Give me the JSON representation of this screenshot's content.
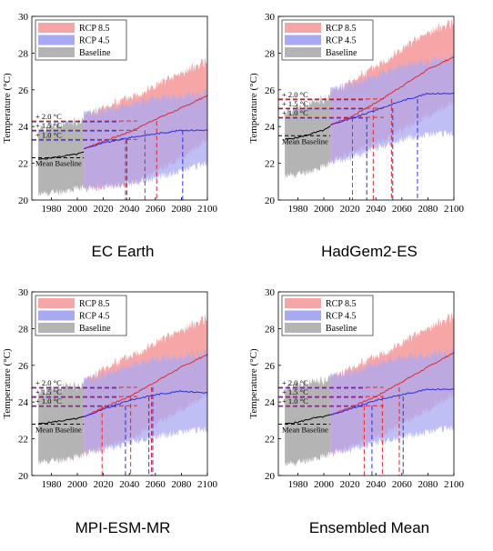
{
  "colors": {
    "rcp85_band": "#f7a6a8",
    "rcp45_band": "#a9a9f3",
    "baseline_band": "#b4b4b4",
    "overlap_band": "#a779c6",
    "rcp85_line": "#e8242b",
    "rcp45_line": "#2b2fe0",
    "baseline_line": "#000000"
  },
  "legend": [
    "RCP 8.5",
    "RCP 4.5",
    "Baseline"
  ],
  "threshold_labels": [
    "+ 2.0 °C",
    "+ 1.5 °C",
    "+ 1.0 °C"
  ],
  "mean_label": "Mean Baseline",
  "ylabel": "Temperature (°C)",
  "chart_data": [
    {
      "type": "area",
      "title": "EC Earth",
      "ylabel": "Temperature (°C)",
      "xlim": [
        1965,
        2100
      ],
      "ylim": [
        20,
        30
      ],
      "xticks": [
        1980,
        2000,
        2020,
        2040,
        2060,
        2080,
        2100
      ],
      "yticks": [
        20,
        22,
        24,
        26,
        28,
        30
      ],
      "baseline_period": [
        1970,
        2005
      ],
      "mean_baseline": 22.3,
      "baseline": {
        "x": [
          1970,
          1980,
          1990,
          2000,
          2005
        ],
        "mean": [
          22.2,
          22.3,
          22.4,
          22.5,
          22.6
        ],
        "low": [
          20.3,
          20.4,
          20.5,
          20.6,
          20.7
        ],
        "high": [
          23.9,
          24.0,
          24.1,
          24.3,
          24.4
        ]
      },
      "series": [
        {
          "name": "RCP 8.5",
          "x": [
            2005,
            2020,
            2040,
            2060,
            2080,
            2100
          ],
          "mean": [
            22.8,
            23.2,
            23.7,
            24.4,
            25.0,
            25.7
          ],
          "low": [
            20.6,
            20.7,
            20.9,
            21.5,
            22.3,
            23.3
          ],
          "high": [
            24.6,
            25.0,
            25.6,
            26.2,
            26.9,
            27.6
          ]
        },
        {
          "name": "RCP 4.5",
          "x": [
            2005,
            2020,
            2040,
            2060,
            2080,
            2100
          ],
          "mean": [
            22.8,
            23.1,
            23.4,
            23.6,
            23.8,
            23.8
          ],
          "low": [
            20.6,
            20.7,
            20.9,
            21.2,
            21.6,
            22.0
          ],
          "high": [
            24.6,
            24.9,
            25.2,
            25.5,
            25.7,
            25.8
          ]
        }
      ],
      "thresholds": [
        24.3,
        23.8,
        23.3
      ],
      "crossings": {
        "RCP 8.5": [
          2037,
          2052,
          2061
        ],
        "RCP 4.5": [
          2038,
          2081
        ]
      }
    },
    {
      "type": "area",
      "title": "HadGem2-ES",
      "ylabel": "Temperature (°C)",
      "xlim": [
        1965,
        2100
      ],
      "ylim": [
        20,
        30
      ],
      "xticks": [
        1980,
        2000,
        2020,
        2040,
        2060,
        2080,
        2100
      ],
      "yticks": [
        20,
        22,
        24,
        26,
        28,
        30
      ],
      "baseline_period": [
        1970,
        2005
      ],
      "mean_baseline": 23.5,
      "baseline": {
        "x": [
          1970,
          1980,
          1990,
          2000,
          2005
        ],
        "mean": [
          23.3,
          23.4,
          23.6,
          23.8,
          24.0
        ],
        "low": [
          21.3,
          21.4,
          21.6,
          21.8,
          22.0
        ],
        "high": [
          24.8,
          25.0,
          25.2,
          25.5,
          25.7
        ]
      },
      "series": [
        {
          "name": "RCP 8.5",
          "x": [
            2005,
            2020,
            2040,
            2060,
            2080,
            2100
          ],
          "mean": [
            24.1,
            24.5,
            25.3,
            26.2,
            27.1,
            27.8
          ],
          "low": [
            22.1,
            22.5,
            23.1,
            23.8,
            24.6,
            25.3
          ],
          "high": [
            25.8,
            26.4,
            27.3,
            28.2,
            29.1,
            29.7
          ]
        },
        {
          "name": "RCP 4.5",
          "x": [
            2005,
            2020,
            2040,
            2060,
            2080,
            2100
          ],
          "mean": [
            24.1,
            24.4,
            24.9,
            25.4,
            25.8,
            25.8
          ],
          "low": [
            22.0,
            22.3,
            22.8,
            23.3,
            23.6,
            23.6
          ],
          "high": [
            25.9,
            26.3,
            26.8,
            27.3,
            27.6,
            27.7
          ]
        }
      ],
      "thresholds": [
        25.5,
        25.0,
        24.5
      ],
      "crossings": {
        "RCP 8.5": [
          2022,
          2038,
          2052
        ],
        "RCP 4.5": [
          2033,
          2053,
          2072
        ]
      }
    },
    {
      "type": "area",
      "title": "MPI-ESM-MR",
      "ylabel": "Temperature (°C)",
      "xlim": [
        1965,
        2100
      ],
      "ylim": [
        20,
        30
      ],
      "xticks": [
        1980,
        2000,
        2020,
        2040,
        2060,
        2080,
        2100
      ],
      "yticks": [
        20,
        22,
        24,
        26,
        28,
        30
      ],
      "baseline_period": [
        1970,
        2005
      ],
      "mean_baseline": 22.8,
      "baseline": {
        "x": [
          1970,
          1980,
          1990,
          2000,
          2005
        ],
        "mean": [
          22.8,
          22.9,
          23.0,
          23.1,
          23.2
        ],
        "low": [
          20.7,
          20.8,
          20.9,
          21.0,
          21.1
        ],
        "high": [
          24.6,
          24.7,
          24.8,
          24.9,
          25.0
        ]
      },
      "series": [
        {
          "name": "RCP 8.5",
          "x": [
            2005,
            2020,
            2040,
            2060,
            2080,
            2100
          ],
          "mean": [
            23.2,
            23.7,
            24.3,
            25.1,
            25.9,
            26.6
          ],
          "low": [
            21.2,
            21.5,
            22.0,
            22.8,
            23.6,
            24.4
          ],
          "high": [
            25.1,
            25.8,
            26.5,
            27.2,
            27.9,
            28.6
          ]
        },
        {
          "name": "RCP 4.5",
          "x": [
            2005,
            2020,
            2040,
            2060,
            2080,
            2100
          ],
          "mean": [
            23.2,
            23.6,
            24.1,
            24.4,
            24.6,
            24.5
          ],
          "low": [
            21.2,
            21.4,
            21.8,
            22.1,
            22.4,
            22.5
          ],
          "high": [
            25.1,
            25.5,
            26.0,
            26.3,
            26.5,
            26.6
          ]
        }
      ],
      "thresholds": [
        24.8,
        24.3,
        23.8
      ],
      "crossings": {
        "RCP 8.5": [
          2019,
          2041,
          2057
        ],
        "RCP 4.5": [
          2037,
          2055,
          2058
        ]
      }
    },
    {
      "type": "area",
      "title": "Ensembled Mean",
      "ylabel": "Temperature (°C)",
      "xlim": [
        1965,
        2100
      ],
      "ylim": [
        20,
        30
      ],
      "xticks": [
        1980,
        2000,
        2020,
        2040,
        2060,
        2080,
        2100
      ],
      "yticks": [
        20,
        22,
        24,
        26,
        28,
        30
      ],
      "baseline_period": [
        1970,
        2005
      ],
      "mean_baseline": 22.8,
      "baseline": {
        "x": [
          1970,
          1980,
          1990,
          2000,
          2005
        ],
        "mean": [
          22.8,
          22.9,
          23.1,
          23.2,
          23.3
        ],
        "low": [
          20.6,
          20.7,
          20.9,
          21.0,
          21.2
        ],
        "high": [
          24.8,
          24.9,
          25.0,
          25.2,
          25.4
        ]
      },
      "series": [
        {
          "name": "RCP 8.5",
          "x": [
            2005,
            2020,
            2040,
            2060,
            2080,
            2100
          ],
          "mean": [
            23.3,
            23.7,
            24.3,
            25.1,
            25.9,
            26.7
          ],
          "low": [
            21.2,
            21.5,
            22.1,
            22.8,
            23.6,
            24.4
          ],
          "high": [
            25.3,
            25.8,
            26.5,
            27.2,
            28.0,
            28.7
          ]
        },
        {
          "name": "RCP 4.5",
          "x": [
            2005,
            2020,
            2040,
            2060,
            2080,
            2100
          ],
          "mean": [
            23.3,
            23.6,
            24.1,
            24.4,
            24.7,
            24.7
          ],
          "low": [
            21.2,
            21.4,
            21.8,
            22.1,
            22.4,
            22.6
          ],
          "high": [
            25.3,
            25.6,
            26.1,
            26.4,
            26.6,
            26.7
          ]
        }
      ],
      "thresholds": [
        24.8,
        24.3,
        23.8
      ],
      "crossings": {
        "RCP 8.5": [
          2031,
          2045,
          2058
        ],
        "RCP 4.5": [
          2037,
          2061
        ]
      }
    }
  ]
}
